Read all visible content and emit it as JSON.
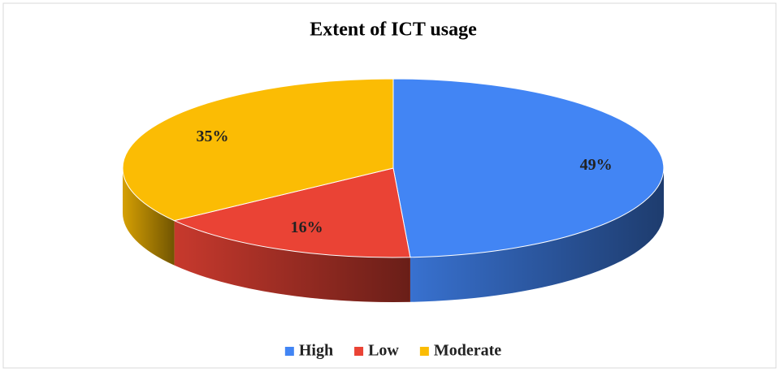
{
  "chart_data": {
    "type": "pie",
    "title": "Extent of ICT usage",
    "categories": [
      "High",
      "Low",
      "Moderate"
    ],
    "values": [
      49,
      16,
      35
    ],
    "value_labels": [
      "49%",
      "16%",
      "35%"
    ],
    "colors": [
      "#4285f4",
      "#ea4335",
      "#fbbc04"
    ],
    "legend": "bottom"
  }
}
